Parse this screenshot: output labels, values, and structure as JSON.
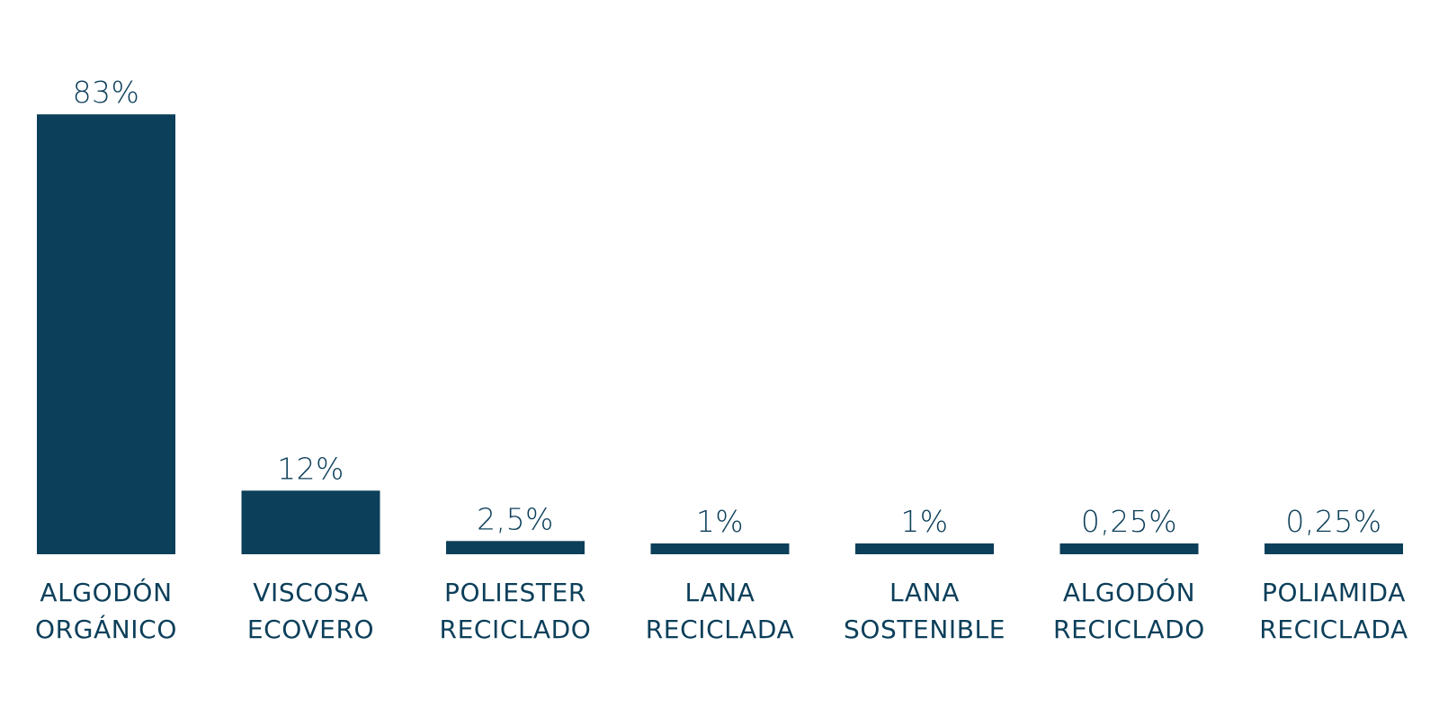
{
  "chart_data": {
    "type": "bar",
    "categories": [
      [
        "ALGODÓN",
        "ORGÁNICO"
      ],
      [
        "VISCOSA",
        "ECOVERO"
      ],
      [
        "POLIESTER",
        "RECICLADO"
      ],
      [
        "LANA",
        "RECICLADA"
      ],
      [
        "LANA",
        "SOSTENIBLE"
      ],
      [
        "ALGODÓN",
        "RECICLADO"
      ],
      [
        "POLIAMIDA",
        "RECICLADA"
      ]
    ],
    "values": [
      83,
      12,
      2.5,
      1,
      1,
      0.25,
      0.25
    ],
    "value_labels": [
      "83%",
      "12%",
      "2,5%",
      "1%",
      "1%",
      "0,25%",
      "0,25%"
    ],
    "title": "",
    "xlabel": "",
    "ylabel": "",
    "grid": false,
    "legend": "none",
    "bar_color": "#0c3f5a",
    "text_color": "#0c3f5a"
  }
}
